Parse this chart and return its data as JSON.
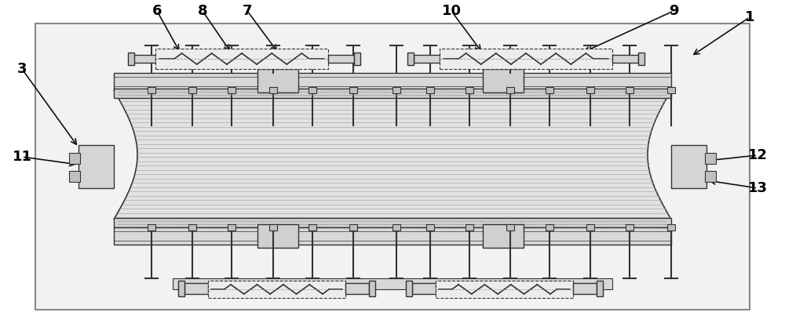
{
  "bg_color": "#ffffff",
  "outer_bg": "#f0f0f0",
  "lc": "#666666",
  "dc": "#333333",
  "plate_fill": "#d0d0d0",
  "cable_fill": "#e0e0e0",
  "spring_fill": "#e8e8e8",
  "figsize": [
    10.0,
    4.12
  ],
  "dpi": 100
}
